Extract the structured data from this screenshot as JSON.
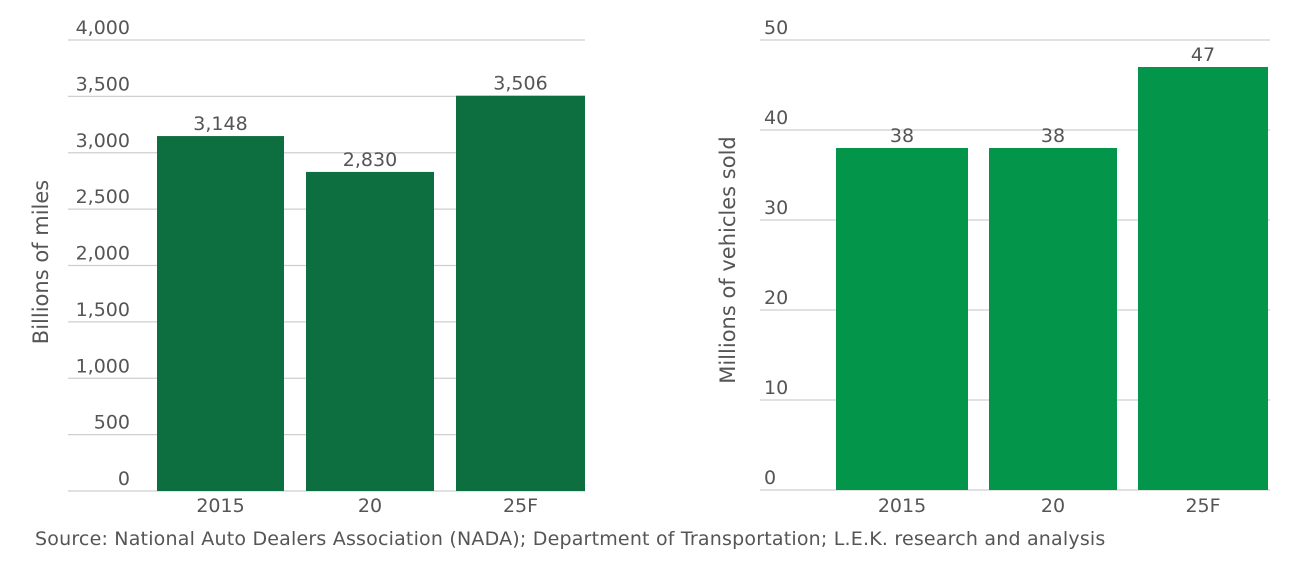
{
  "chart_data": [
    {
      "type": "bar",
      "categories": [
        "2015",
        "20",
        "25F"
      ],
      "values": [
        3148,
        2830,
        3506
      ],
      "data_labels": [
        "3,148",
        "2,830",
        "3,506"
      ],
      "xlabel": "",
      "ylabel": "Billions of miles",
      "ylim": [
        0,
        4000
      ],
      "yticks": [
        "0",
        "500",
        "1,000",
        "1,500",
        "2,000",
        "2,500",
        "3,000",
        "3,500",
        "4,000"
      ],
      "ytick_values": [
        0,
        500,
        1000,
        1500,
        2000,
        2500,
        3000,
        3500,
        4000
      ],
      "grid": true,
      "color": "#0d6e3f"
    },
    {
      "type": "bar",
      "categories": [
        "2015",
        "20",
        "25F"
      ],
      "values": [
        38,
        38,
        47
      ],
      "data_labels": [
        "38",
        "38",
        "47"
      ],
      "xlabel": "",
      "ylabel": "Millions of vehicles sold",
      "ylim": [
        0,
        50
      ],
      "yticks": [
        "0",
        "10",
        "20",
        "30",
        "40",
        "50"
      ],
      "ytick_values": [
        0,
        10,
        20,
        30,
        40,
        50
      ],
      "grid": true,
      "color": "#03964a"
    }
  ],
  "source": "Source: National Auto Dealers Association (NADA); Department of Transportation; L.E.K. research and analysis"
}
